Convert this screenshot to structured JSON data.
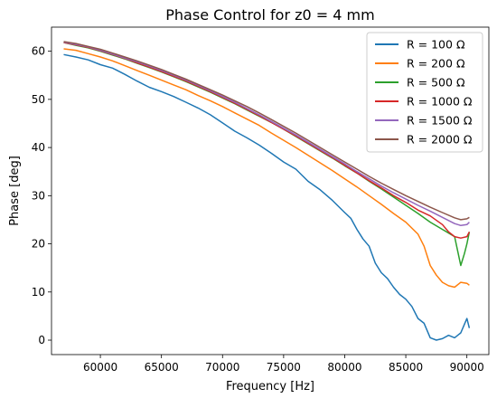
{
  "chart_data": {
    "type": "line",
    "title": "Phase Control for z0 = 4 mm",
    "xlabel": "Frequency [Hz]",
    "ylabel": "Phase [deg]",
    "xlim": [
      56000,
      91800
    ],
    "ylim": [
      -3,
      65
    ],
    "xticks": [
      60000,
      65000,
      70000,
      75000,
      80000,
      85000,
      90000
    ],
    "xtick_labels": [
      "60000",
      "65000",
      "70000",
      "75000",
      "80000",
      "85000",
      "90000"
    ],
    "yticks": [
      0,
      10,
      20,
      30,
      40,
      50,
      60
    ],
    "ytick_labels": [
      "0",
      "10",
      "20",
      "30",
      "40",
      "50",
      "60"
    ],
    "grid": false,
    "legend_position": "top-right",
    "series": [
      {
        "name": "R = 100 Ω",
        "color": "#1f77b4",
        "x": [
          57000,
          58000,
          59000,
          60000,
          61000,
          62000,
          63000,
          64000,
          65000,
          66000,
          67000,
          68000,
          69000,
          70000,
          71000,
          72000,
          73000,
          74000,
          75000,
          76000,
          77000,
          78000,
          79000,
          80000,
          80500,
          81000,
          81500,
          82000,
          82500,
          83000,
          83500,
          84000,
          84500,
          85000,
          85500,
          86000,
          86500,
          87000,
          87500,
          88000,
          88500,
          89000,
          89500,
          90000,
          90200
        ],
        "y": [
          59.3,
          58.8,
          58.2,
          57.2,
          56.5,
          55.2,
          53.8,
          52.5,
          51.6,
          50.6,
          49.4,
          48.2,
          46.8,
          45.1,
          43.4,
          42.0,
          40.5,
          38.8,
          37.0,
          35.5,
          33.0,
          31.2,
          29.0,
          26.5,
          25.3,
          23.0,
          21.0,
          19.5,
          16.0,
          14.0,
          12.8,
          11.0,
          9.5,
          8.5,
          7.0,
          4.5,
          3.5,
          0.5,
          0.0,
          0.3,
          1.0,
          0.5,
          1.5,
          4.5,
          2.5
        ]
      },
      {
        "name": "R = 200 Ω",
        "color": "#ff7f0e",
        "x": [
          57000,
          58000,
          59000,
          60000,
          61000,
          62000,
          63000,
          64000,
          65000,
          66000,
          67000,
          68000,
          69000,
          70000,
          71000,
          72000,
          73000,
          74000,
          75000,
          76000,
          77000,
          78000,
          79000,
          80000,
          81000,
          82000,
          83000,
          84000,
          85000,
          86000,
          86500,
          87000,
          87500,
          88000,
          88500,
          89000,
          89500,
          90000,
          90200
        ],
        "y": [
          60.5,
          60.2,
          59.5,
          58.8,
          58.0,
          57.0,
          56.0,
          55.0,
          54.0,
          53.0,
          52.0,
          50.8,
          49.7,
          48.5,
          47.2,
          45.9,
          44.6,
          43.0,
          41.5,
          40.0,
          38.4,
          36.8,
          35.2,
          33.5,
          31.8,
          30.0,
          28.2,
          26.3,
          24.5,
          22.0,
          19.5,
          15.5,
          13.5,
          12.0,
          11.3,
          11.0,
          12.0,
          11.8,
          11.4
        ]
      },
      {
        "name": "R = 500 Ω",
        "color": "#2ca02c",
        "x": [
          57000,
          58000,
          59000,
          60000,
          61000,
          62000,
          63000,
          64000,
          65000,
          66000,
          67000,
          68000,
          69000,
          70000,
          71000,
          72000,
          73000,
          74000,
          75000,
          76000,
          77000,
          78000,
          79000,
          80000,
          81000,
          82000,
          83000,
          84000,
          85000,
          86000,
          87000,
          88000,
          89000,
          89500,
          89800,
          90000,
          90200
        ],
        "y": [
          61.8,
          61.2,
          60.7,
          60.0,
          59.2,
          58.4,
          57.5,
          56.6,
          55.7,
          54.7,
          53.7,
          52.6,
          51.5,
          50.3,
          49.1,
          47.8,
          46.5,
          45.2,
          43.8,
          42.3,
          40.8,
          39.3,
          37.8,
          36.2,
          34.7,
          33.0,
          31.4,
          29.7,
          28.0,
          26.3,
          24.5,
          23.0,
          21.5,
          15.5,
          18.0,
          20.0,
          22.5
        ]
      },
      {
        "name": "R = 1000 Ω",
        "color": "#d62728",
        "x": [
          57000,
          58000,
          59000,
          60000,
          61000,
          62000,
          63000,
          64000,
          65000,
          66000,
          67000,
          68000,
          69000,
          70000,
          71000,
          72000,
          73000,
          74000,
          75000,
          76000,
          77000,
          78000,
          79000,
          80000,
          81000,
          82000,
          83000,
          84000,
          85000,
          86000,
          87000,
          88000,
          88500,
          89000,
          89500,
          90000,
          90200
        ],
        "y": [
          61.8,
          61.3,
          60.8,
          60.1,
          59.3,
          58.5,
          57.6,
          56.7,
          55.8,
          54.8,
          53.8,
          52.7,
          51.6,
          50.4,
          49.2,
          47.9,
          46.6,
          45.2,
          43.8,
          42.4,
          40.9,
          39.4,
          37.9,
          36.3,
          34.7,
          33.1,
          31.6,
          30.0,
          28.6,
          27.0,
          25.8,
          24.0,
          22.5,
          21.5,
          21.2,
          21.5,
          22.5
        ]
      },
      {
        "name": "R = 1500 Ω",
        "color": "#9467bd",
        "x": [
          57000,
          58000,
          59000,
          60000,
          61000,
          62000,
          63000,
          64000,
          65000,
          66000,
          67000,
          68000,
          69000,
          70000,
          71000,
          72000,
          73000,
          74000,
          75000,
          76000,
          77000,
          78000,
          79000,
          80000,
          81000,
          82000,
          83000,
          84000,
          85000,
          86000,
          87000,
          88000,
          89000,
          89500,
          90000,
          90200
        ],
        "y": [
          61.9,
          61.4,
          60.9,
          60.2,
          59.4,
          58.6,
          57.8,
          56.9,
          56.0,
          55.0,
          54.0,
          52.9,
          51.8,
          50.6,
          49.4,
          48.1,
          46.8,
          45.4,
          44.0,
          42.6,
          41.1,
          39.6,
          38.1,
          36.6,
          35.0,
          33.5,
          32.0,
          30.6,
          29.3,
          28.0,
          26.8,
          25.5,
          24.2,
          23.8,
          24.0,
          24.5
        ]
      },
      {
        "name": "R = 2000 Ω",
        "color": "#8c564b",
        "x": [
          57000,
          58000,
          59000,
          60000,
          61000,
          62000,
          63000,
          64000,
          65000,
          66000,
          67000,
          68000,
          69000,
          70000,
          71000,
          72000,
          73000,
          74000,
          75000,
          76000,
          77000,
          78000,
          79000,
          80000,
          81000,
          82000,
          83000,
          84000,
          85000,
          86000,
          87000,
          88000,
          89000,
          89500,
          90000,
          90200
        ],
        "y": [
          62.0,
          61.6,
          61.0,
          60.4,
          59.6,
          58.8,
          58.0,
          57.1,
          56.2,
          55.2,
          54.2,
          53.1,
          52.0,
          50.9,
          49.7,
          48.5,
          47.2,
          45.8,
          44.4,
          43.0,
          41.5,
          40.0,
          38.5,
          37.0,
          35.5,
          34.0,
          32.6,
          31.3,
          30.0,
          28.8,
          27.6,
          26.5,
          25.4,
          25.0,
          25.2,
          25.5
        ]
      }
    ]
  }
}
